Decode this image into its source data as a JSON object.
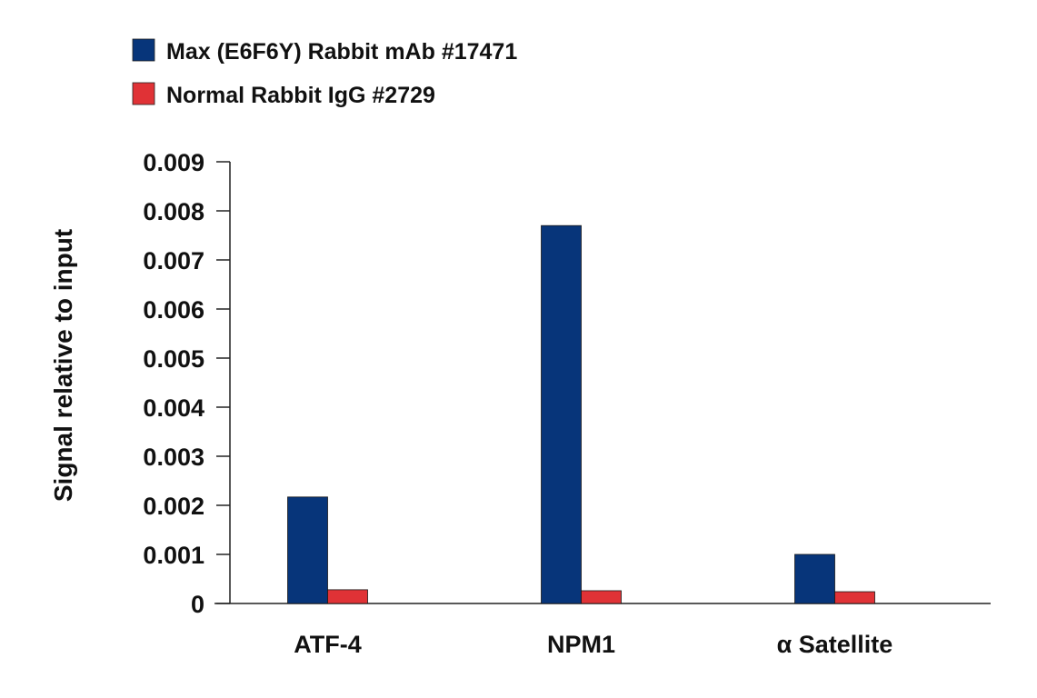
{
  "chart_data": {
    "type": "bar",
    "title": "",
    "xlabel": "",
    "ylabel": "Signal relative to input",
    "categories": [
      "ATF-4",
      "NPM1",
      "α Satellite"
    ],
    "series": [
      {
        "name": "Max (E6F6Y) Rabbit mAb #17471",
        "color": "#07357a",
        "values": [
          0.00217,
          0.0077,
          0.001
        ]
      },
      {
        "name": "Normal Rabbit IgG #2729",
        "color": "#e03236",
        "values": [
          0.00028,
          0.00026,
          0.00024
        ]
      }
    ],
    "ylim": [
      0,
      0.009
    ],
    "yticks": [
      "0",
      "0.001",
      "0.002",
      "0.003",
      "0.004",
      "0.005",
      "0.006",
      "0.007",
      "0.008",
      "0.009"
    ],
    "grid": false,
    "legend_position": "top-left"
  }
}
